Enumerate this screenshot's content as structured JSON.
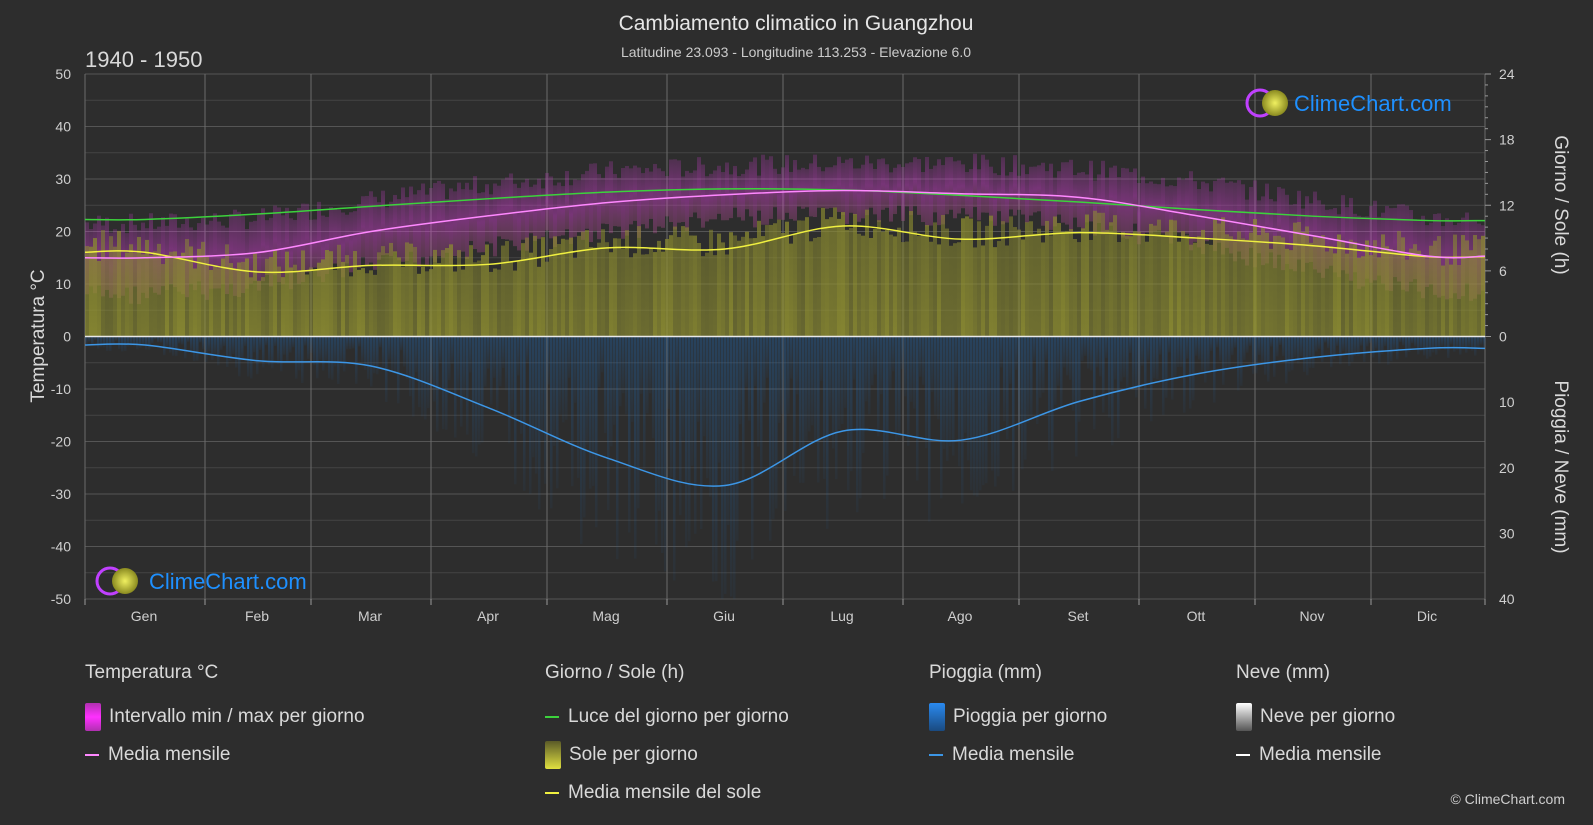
{
  "header": {
    "title": "Cambiamento climatico in Guangzhou",
    "subtitle": "Latitudine 23.093 - Longitudine 113.253 - Elevazione 6.0",
    "period": "1940 - 1950"
  },
  "watermark": {
    "text": "ClimeChart.com"
  },
  "copyright": "© ClimeChart.com",
  "colors": {
    "background": "#2d2d2d",
    "grid": "#555555",
    "temp_range": "#e040e0",
    "temp_mean": "#ff88ff",
    "daylight": "#3cd23c",
    "sunshine": "#b4b43c",
    "sun_mean": "#f0f040",
    "rain": "#1e64aa",
    "rain_mean": "#3c96e6",
    "snow_mean": "#ffffff",
    "brand": "#1e90ff"
  },
  "chart_data": {
    "type": "line",
    "months": [
      "Gen",
      "Feb",
      "Mar",
      "Apr",
      "Mag",
      "Giu",
      "Lug",
      "Ago",
      "Set",
      "Ott",
      "Nov",
      "Dic"
    ],
    "axes": {
      "left": {
        "label": "Temperatura °C",
        "range": [
          -50,
          50
        ],
        "ticks": [
          "50",
          "40",
          "30",
          "20",
          "10",
          "0",
          "-10",
          "-20",
          "-30",
          "-40",
          "-50"
        ]
      },
      "right_top": {
        "label": "Giorno / Sole (h)",
        "range": [
          0,
          24
        ],
        "ticks": [
          "24",
          "18",
          "12",
          "6",
          "0"
        ]
      },
      "right_bottom": {
        "label": "Pioggia / Neve (mm)",
        "range": [
          0,
          40
        ],
        "ticks": [
          "0",
          "10",
          "20",
          "30",
          "40"
        ]
      }
    },
    "series": [
      {
        "name": "Media mensile",
        "group": "Temperatura °C",
        "unit": "°C",
        "values": [
          15.0,
          16.0,
          20.0,
          23.0,
          25.5,
          27.0,
          27.8,
          27.2,
          26.5,
          23.0,
          19.2,
          15.3
        ]
      },
      {
        "name": "Intervallo min / max per giorno",
        "group": "Temperatura °C",
        "unit": "°C",
        "min": [
          10.0,
          11.5,
          15.5,
          19.0,
          22.0,
          24.5,
          25.0,
          24.8,
          23.5,
          19.5,
          14.5,
          10.5
        ],
        "max": [
          19.5,
          20.5,
          24.0,
          27.0,
          29.5,
          30.5,
          31.0,
          31.0,
          30.0,
          27.5,
          24.0,
          20.5
        ]
      },
      {
        "name": "Luce del giorno per giorno",
        "group": "Giorno / Sole (h)",
        "unit": "h",
        "values": [
          10.7,
          11.2,
          11.9,
          12.6,
          13.2,
          13.5,
          13.4,
          12.9,
          12.3,
          11.6,
          11.0,
          10.6
        ]
      },
      {
        "name": "Media mensile del sole",
        "group": "Giorno / Sole (h)",
        "unit": "h",
        "values": [
          7.7,
          5.9,
          6.5,
          6.6,
          8.1,
          8.0,
          10.1,
          8.9,
          9.5,
          9.0,
          8.3,
          7.3
        ]
      },
      {
        "name": "Media mensile",
        "group": "Pioggia (mm)",
        "unit": "mm",
        "values": [
          1.3,
          3.7,
          4.5,
          10.9,
          18.5,
          22.7,
          14.4,
          15.8,
          9.9,
          5.7,
          3.2,
          1.8
        ]
      },
      {
        "name": "Media mensile",
        "group": "Neve (mm)",
        "unit": "mm",
        "values": [
          0,
          0,
          0,
          0,
          0,
          0,
          0,
          0,
          0,
          0,
          0,
          0
        ]
      }
    ],
    "grid": true
  },
  "legend": {
    "groups": [
      {
        "title": "Temperatura °C",
        "items": [
          {
            "label": "Intervallo min / max per giorno",
            "swatch": "box",
            "color": "#e040e0"
          },
          {
            "label": "Media mensile",
            "swatch": "line",
            "color": "#ff88ff"
          }
        ]
      },
      {
        "title": "Giorno / Sole (h)",
        "items": [
          {
            "label": "Luce del giorno per giorno",
            "swatch": "line",
            "color": "#3cd23c"
          },
          {
            "label": "Sole per giorno",
            "swatch": "box",
            "color": "#c8c832"
          },
          {
            "label": "Media mensile del sole",
            "swatch": "line",
            "color": "#f0f040"
          }
        ]
      },
      {
        "title": "Pioggia (mm)",
        "items": [
          {
            "label": "Pioggia per giorno",
            "swatch": "box",
            "color": "#2a7ad0"
          },
          {
            "label": "Media mensile",
            "swatch": "line",
            "color": "#3c96e6"
          }
        ]
      },
      {
        "title": "Neve (mm)",
        "items": [
          {
            "label": "Neve per giorno",
            "swatch": "box",
            "color": "#dddddd"
          },
          {
            "label": "Media mensile",
            "swatch": "line",
            "color": "#ffffff"
          }
        ]
      }
    ]
  }
}
